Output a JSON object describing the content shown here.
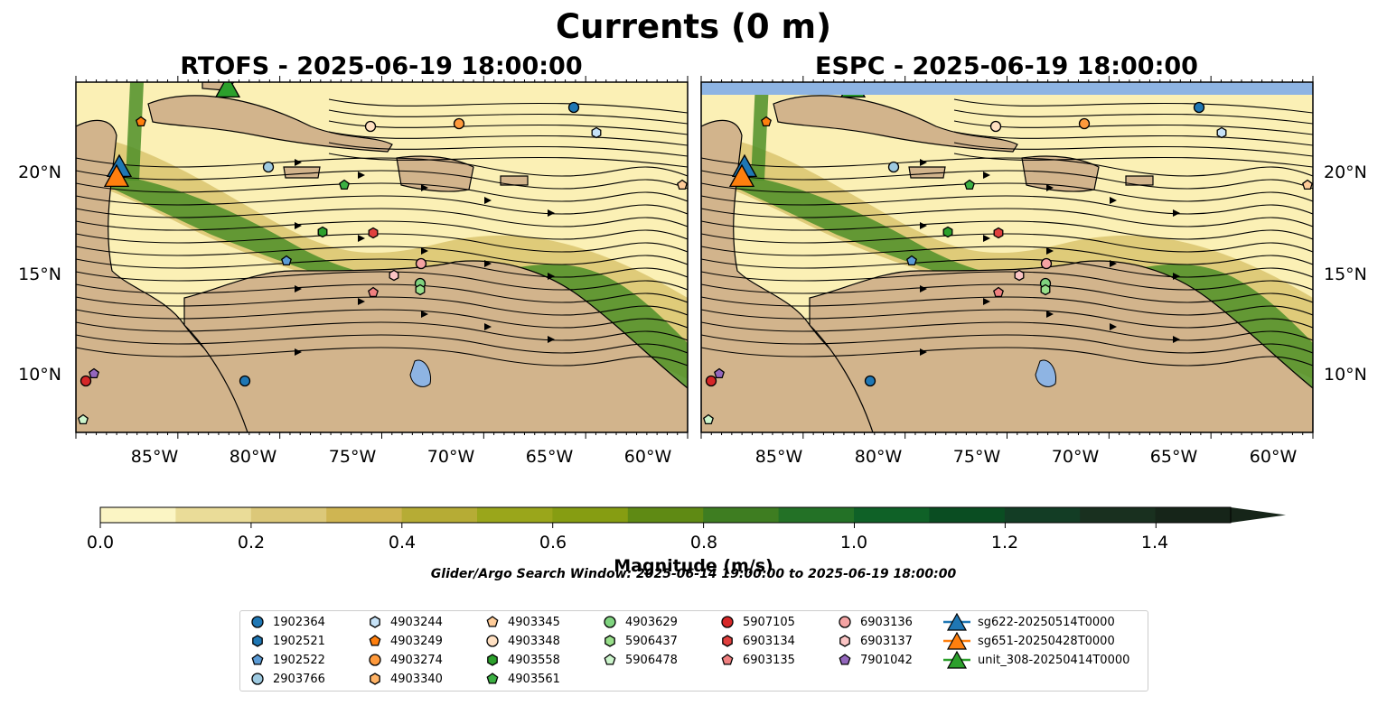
{
  "title": "Currents (0 m)",
  "panels": [
    {
      "title": "RTOFS - 2025-06-19 18:00:00"
    },
    {
      "title": "ESPC - 2025-06-19 18:00:00"
    }
  ],
  "axes": {
    "lon_ticks": [
      "85°W",
      "80°W",
      "75°W",
      "70°W",
      "65°W",
      "60°W"
    ],
    "lat_ticks": [
      "20°N",
      "15°N",
      "10°N"
    ]
  },
  "colorbar": {
    "label": "Magnitude (m/s)",
    "ticks": [
      "0.0",
      "0.2",
      "0.4",
      "0.6",
      "0.8",
      "1.0",
      "1.2",
      "1.4"
    ],
    "colors": [
      "#fbf5c4",
      "#eadc98",
      "#dcc879",
      "#cfb552",
      "#b6ac35",
      "#9aa61b",
      "#869d12",
      "#5f8a14",
      "#3e7d21",
      "#237126",
      "#0f6127",
      "#0a4d22",
      "#133d25",
      "#19301f",
      "#162519"
    ]
  },
  "search_window": "Glider/Argo Search Window: 2025-06-14 19:00:00 to 2025-06-19 18:00:00",
  "legend": [
    {
      "label": "1902364",
      "shape": "circle",
      "color": "#1f77b4"
    },
    {
      "label": "1902521",
      "shape": "hexagon",
      "color": "#1f77b4"
    },
    {
      "label": "1902522",
      "shape": "pentagon",
      "color": "#5b9bd5"
    },
    {
      "label": "2903766",
      "shape": "circle",
      "color": "#9ecae1"
    },
    {
      "label": "4903244",
      "shape": "hexagon",
      "color": "#c6e2f7"
    },
    {
      "label": "4903249",
      "shape": "pentagon",
      "color": "#ff7f0e"
    },
    {
      "label": "4903274",
      "shape": "circle",
      "color": "#ff9a3c"
    },
    {
      "label": "4903340",
      "shape": "hexagon",
      "color": "#ffb366"
    },
    {
      "label": "4903345",
      "shape": "pentagon",
      "color": "#ffcc99"
    },
    {
      "label": "4903348",
      "shape": "circle",
      "color": "#ffe0c2"
    },
    {
      "label": "4903558",
      "shape": "hexagon",
      "color": "#2ca02c"
    },
    {
      "label": "4903561",
      "shape": "pentagon",
      "color": "#3cb043"
    },
    {
      "label": "4903629",
      "shape": "circle",
      "color": "#7fd37f"
    },
    {
      "label": "5906437",
      "shape": "hexagon",
      "color": "#98df8a"
    },
    {
      "label": "5906478",
      "shape": "pentagon",
      "color": "#ccf5cc"
    },
    {
      "label": "5907105",
      "shape": "circle",
      "color": "#d62728"
    },
    {
      "label": "6903134",
      "shape": "hexagon",
      "color": "#e0403e"
    },
    {
      "label": "6903135",
      "shape": "pentagon",
      "color": "#f08080"
    },
    {
      "label": "6903136",
      "shape": "circle",
      "color": "#f4a3a3"
    },
    {
      "label": "6903137",
      "shape": "hexagon",
      "color": "#fbc4c4"
    },
    {
      "label": "7901042",
      "shape": "pentagon",
      "color": "#9467bd"
    },
    {
      "label": "sg622-20250514T0000",
      "shape": "triangle",
      "color": "#1f77b4"
    },
    {
      "label": "sg651-20250428T0000",
      "shape": "triangle",
      "color": "#ff7f0e"
    },
    {
      "label": "unit_308-20250414T0000",
      "shape": "triangle",
      "color": "#2ca02c"
    }
  ],
  "map_colors": {
    "land": "#d2b48c",
    "lake": "#8eb4e3",
    "ocean_low": "#fbf0b5",
    "ocean_mid": "#d9c46e",
    "ocean_high": "#4e8f28"
  }
}
